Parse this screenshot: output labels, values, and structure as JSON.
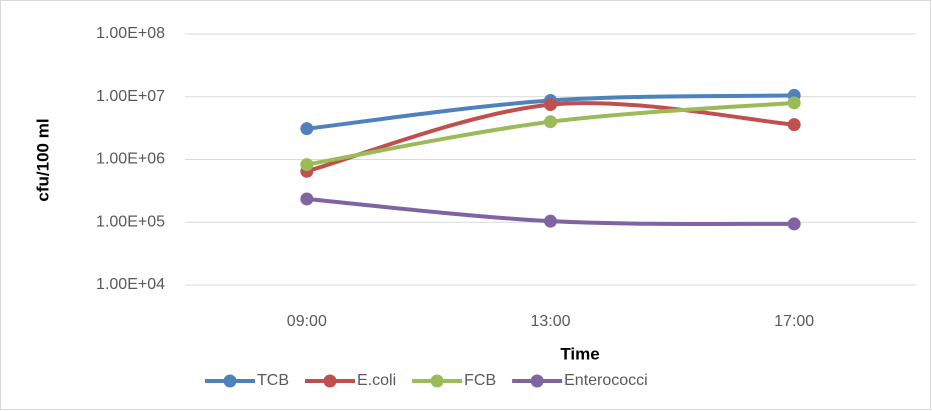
{
  "chart_data": {
    "type": "line",
    "x_label": "Time",
    "y_label": "cfu/100 ml",
    "categories": [
      "09:00",
      "13:00",
      "17:00"
    ],
    "series": [
      {
        "name": "TCB",
        "color": "#4f81bd",
        "values": [
          3100000,
          8700000,
          10500000
        ]
      },
      {
        "name": "E.coli",
        "color": "#c0504d",
        "values": [
          650000,
          7500000,
          3600000
        ]
      },
      {
        "name": "FCB",
        "color": "#9bbb59",
        "values": [
          830000,
          4000000,
          8000000
        ]
      },
      {
        "name": "Enterococci",
        "color": "#8064a2",
        "values": [
          235000,
          104000,
          94000
        ]
      }
    ],
    "log_scale": true,
    "ylim": [
      10000,
      100000000
    ],
    "yticks": [
      {
        "value": 10000,
        "label": "1.00E+04"
      },
      {
        "value": 100000,
        "label": "1.00E+05"
      },
      {
        "value": 1000000,
        "label": "1.00E+06"
      },
      {
        "value": 10000000,
        "label": "1.00E+07"
      },
      {
        "value": 100000000,
        "label": "1.00E+08"
      }
    ],
    "grid": true,
    "smooth": true,
    "legend": "bottom"
  }
}
